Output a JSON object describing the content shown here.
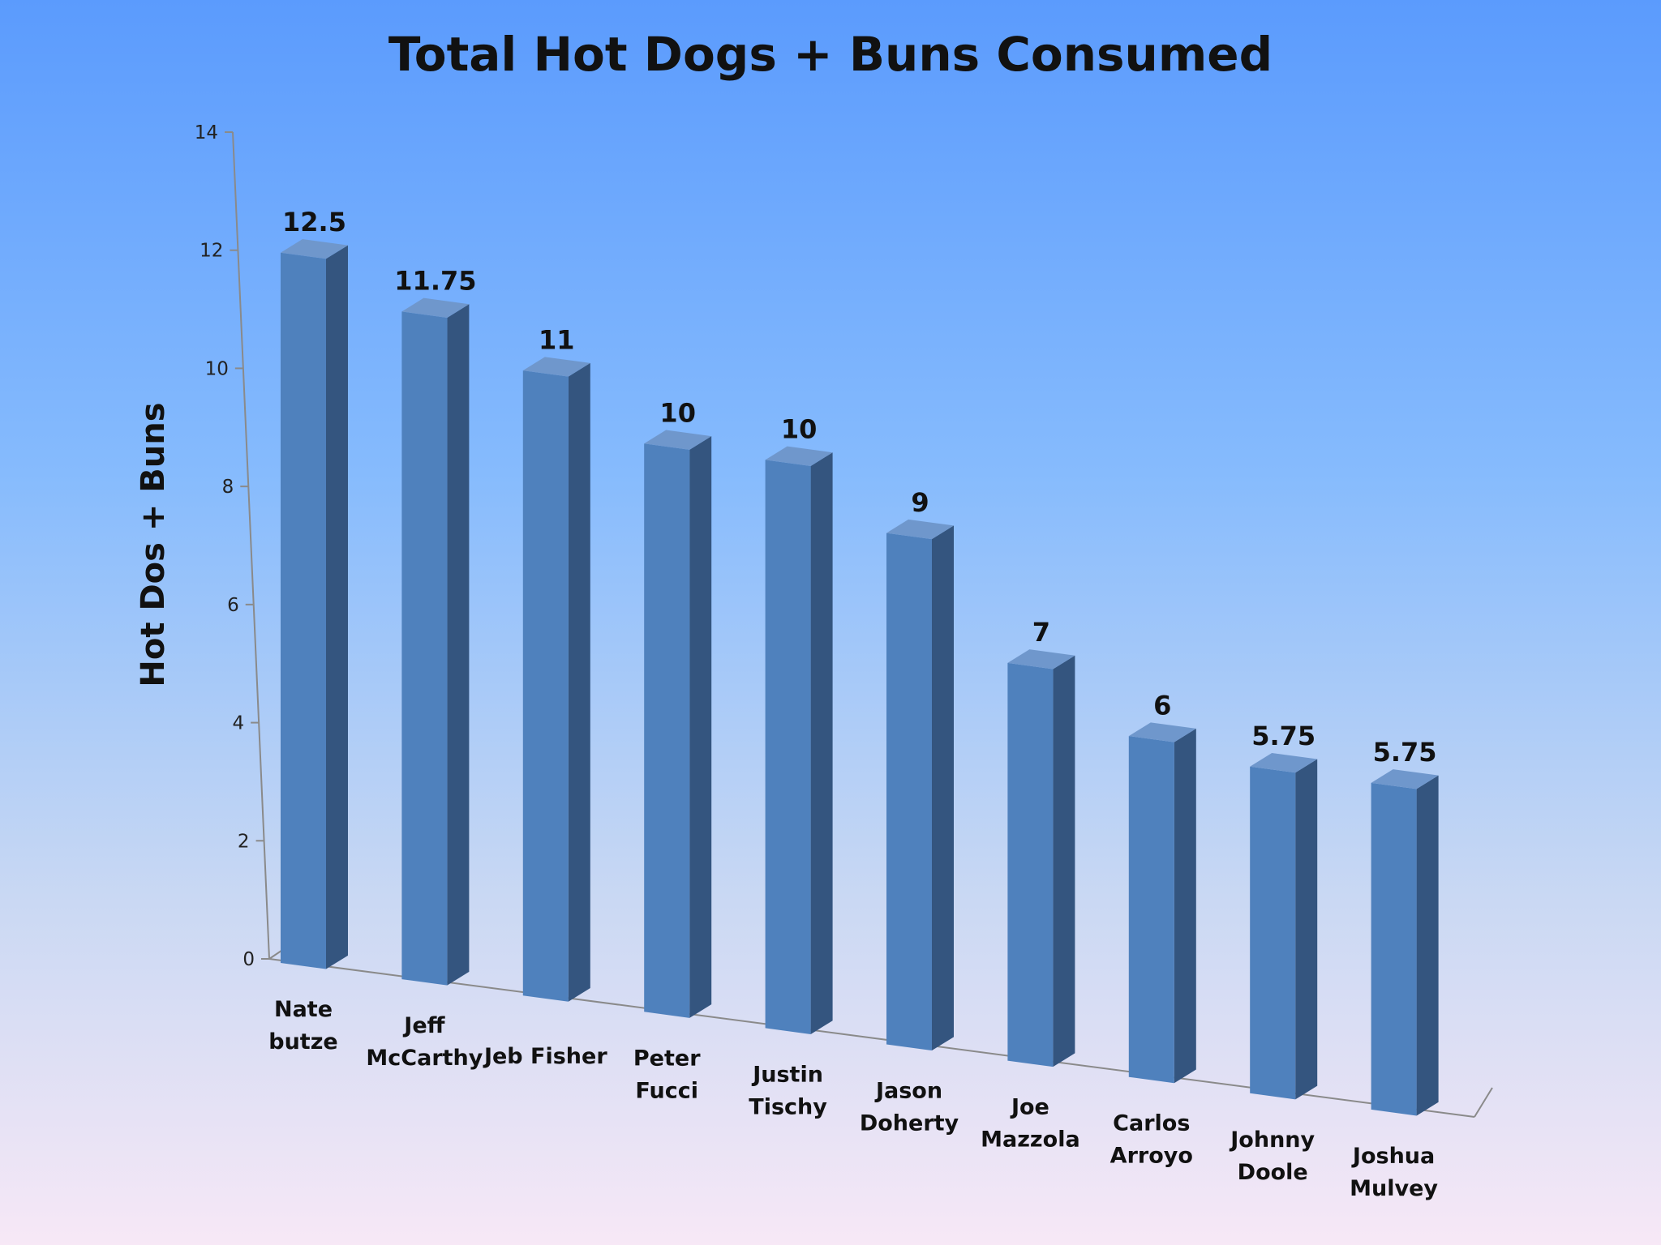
{
  "chart_data": {
    "type": "bar",
    "title": "Total Hot Dogs + Buns Consumed",
    "ylabel": "Hot Dos + Buns",
    "xlabel": "",
    "ylim": [
      0,
      14
    ],
    "yticks": [
      "0",
      "2",
      "4",
      "6",
      "8",
      "10",
      "12",
      "14"
    ],
    "categories": [
      [
        "Nate",
        "butze"
      ],
      [
        "Jeff",
        "McCarthy"
      ],
      [
        "Jeb Fisher"
      ],
      [
        "Peter",
        "Fucci"
      ],
      [
        "Justin",
        "Tischy"
      ],
      [
        "Jason",
        "Doherty"
      ],
      [
        "Joe",
        "Mazzola"
      ],
      [
        "Carlos",
        "Arroyo"
      ],
      [
        "Johnny",
        "Doole"
      ],
      [
        "Joshua",
        "Mulvey"
      ]
    ],
    "values": [
      12.5,
      11.75,
      11,
      10,
      10,
      9,
      7,
      6,
      5.75,
      5.75
    ],
    "value_labels": [
      "12.5",
      "11.75",
      "11",
      "10",
      "10",
      "9",
      "7",
      "6",
      "5.75",
      "5.75"
    ],
    "colors": {
      "bar_front": "#4f81bd",
      "bar_side": "#34557f",
      "bar_top": "#6f97cc",
      "axis": "#8a8a8a"
    }
  }
}
